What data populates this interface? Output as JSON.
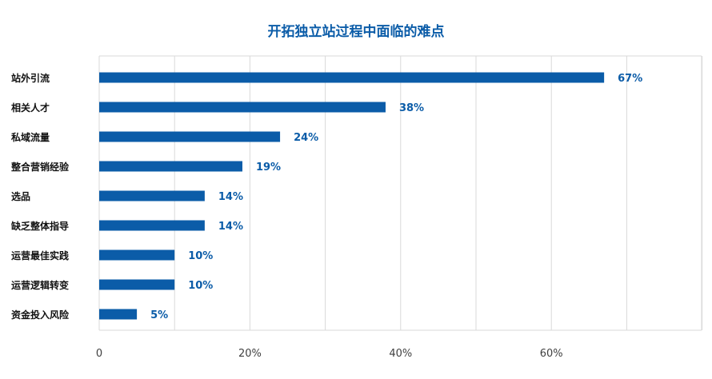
{
  "chart_data": {
    "type": "bar",
    "orientation": "horizontal",
    "title": "开拓独立站过程中面临的难点",
    "xlabel": "",
    "ylabel": "",
    "categories": [
      "站外引流",
      "相关人才",
      "私域流量",
      "整合营销经验",
      "选品",
      "缺乏整体指导",
      "运营最佳实践",
      "运营逻辑转变",
      "资金投入风险"
    ],
    "values": [
      67,
      38,
      24,
      19,
      14,
      14,
      10,
      10,
      5
    ],
    "value_labels": [
      "67%",
      "38%",
      "24%",
      "19%",
      "14%",
      "14%",
      "10%",
      "10%",
      "5%"
    ],
    "xlim": [
      0,
      80
    ],
    "xticks": [
      0,
      20,
      40,
      60
    ],
    "xtick_labels": [
      "0",
      "20%",
      "40%",
      "60%"
    ],
    "grid": true,
    "legend": "none",
    "bar_color": "#0b5ca8",
    "grid_color": "#d9d9d9",
    "title_color": "#0b5ca8",
    "value_label_color": "#0b5ca8"
  }
}
